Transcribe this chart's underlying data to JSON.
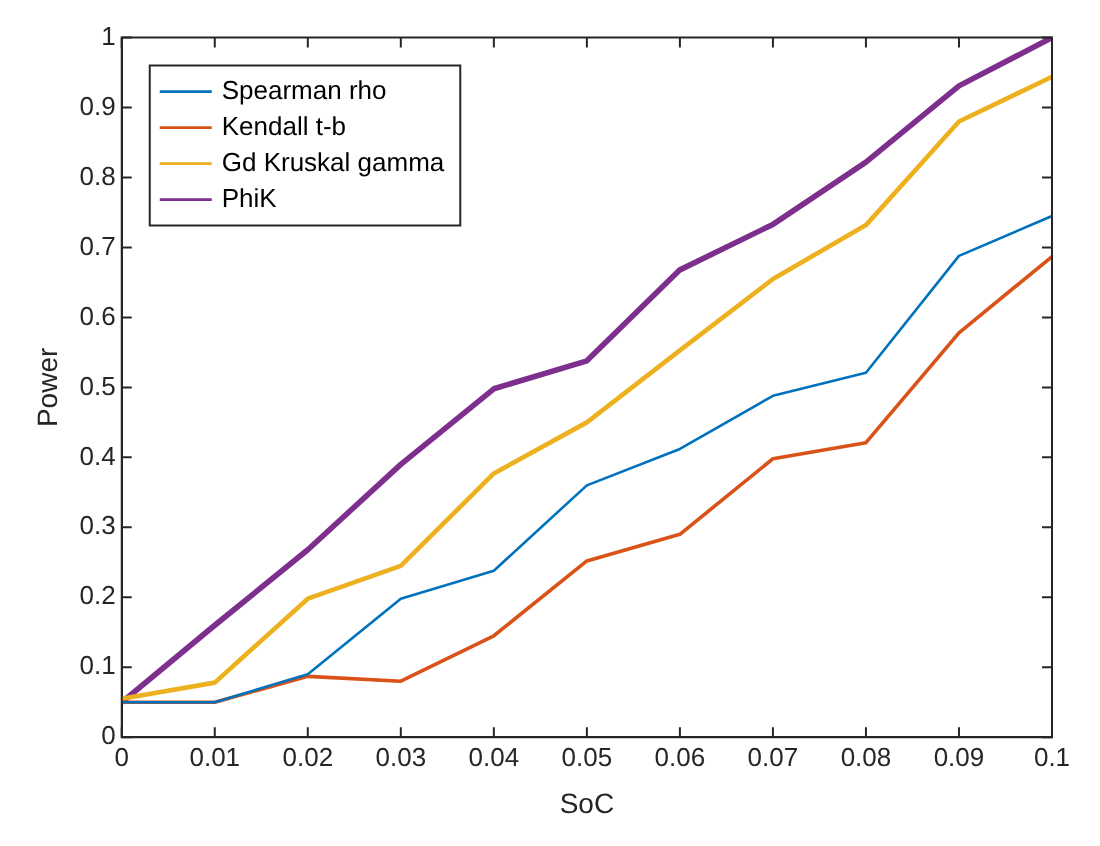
{
  "chart_data": {
    "type": "line",
    "xlabel": "SoC",
    "ylabel": "Power",
    "x": [
      0,
      0.01,
      0.02,
      0.03,
      0.04,
      0.05,
      0.06,
      0.07,
      0.08,
      0.09,
      0.1
    ],
    "series": [
      {
        "name": "Spearman rho",
        "color": "#0072bd",
        "values": [
          0.05,
          0.05,
          0.09,
          0.198,
          0.238,
          0.36,
          0.412,
          0.488,
          0.521,
          0.688,
          0.745
        ]
      },
      {
        "name": "Kendall t-b",
        "color": "#d95319",
        "values": [
          0.05,
          0.05,
          0.087,
          0.08,
          0.145,
          0.252,
          0.29,
          0.398,
          0.421,
          0.578,
          0.687
        ]
      },
      {
        "name": "Gd Kruskal gamma",
        "color": "#edb120",
        "values": [
          0.055,
          0.078,
          0.198,
          0.245,
          0.377,
          0.45,
          0.553,
          0.655,
          0.732,
          0.88,
          0.944
        ]
      },
      {
        "name": "PhiK",
        "color": "#7e2f8e",
        "values": [
          0.05,
          0.16,
          0.268,
          0.39,
          0.498,
          0.538,
          0.668,
          0.733,
          0.822,
          0.931,
          1.0
        ]
      }
    ],
    "xlim": [
      0,
      0.1
    ],
    "xticks": [
      0,
      0.01,
      0.02,
      0.03,
      0.04,
      0.05,
      0.06,
      0.07,
      0.08,
      0.09,
      0.1
    ],
    "ylim": [
      0,
      1
    ],
    "yticks": [
      0,
      0.1,
      0.2,
      0.3,
      0.4,
      0.5,
      0.6,
      0.7,
      0.8,
      0.9,
      1
    ],
    "grid": false,
    "legend": "top left",
    "marker": "none",
    "line_style": "solid"
  }
}
